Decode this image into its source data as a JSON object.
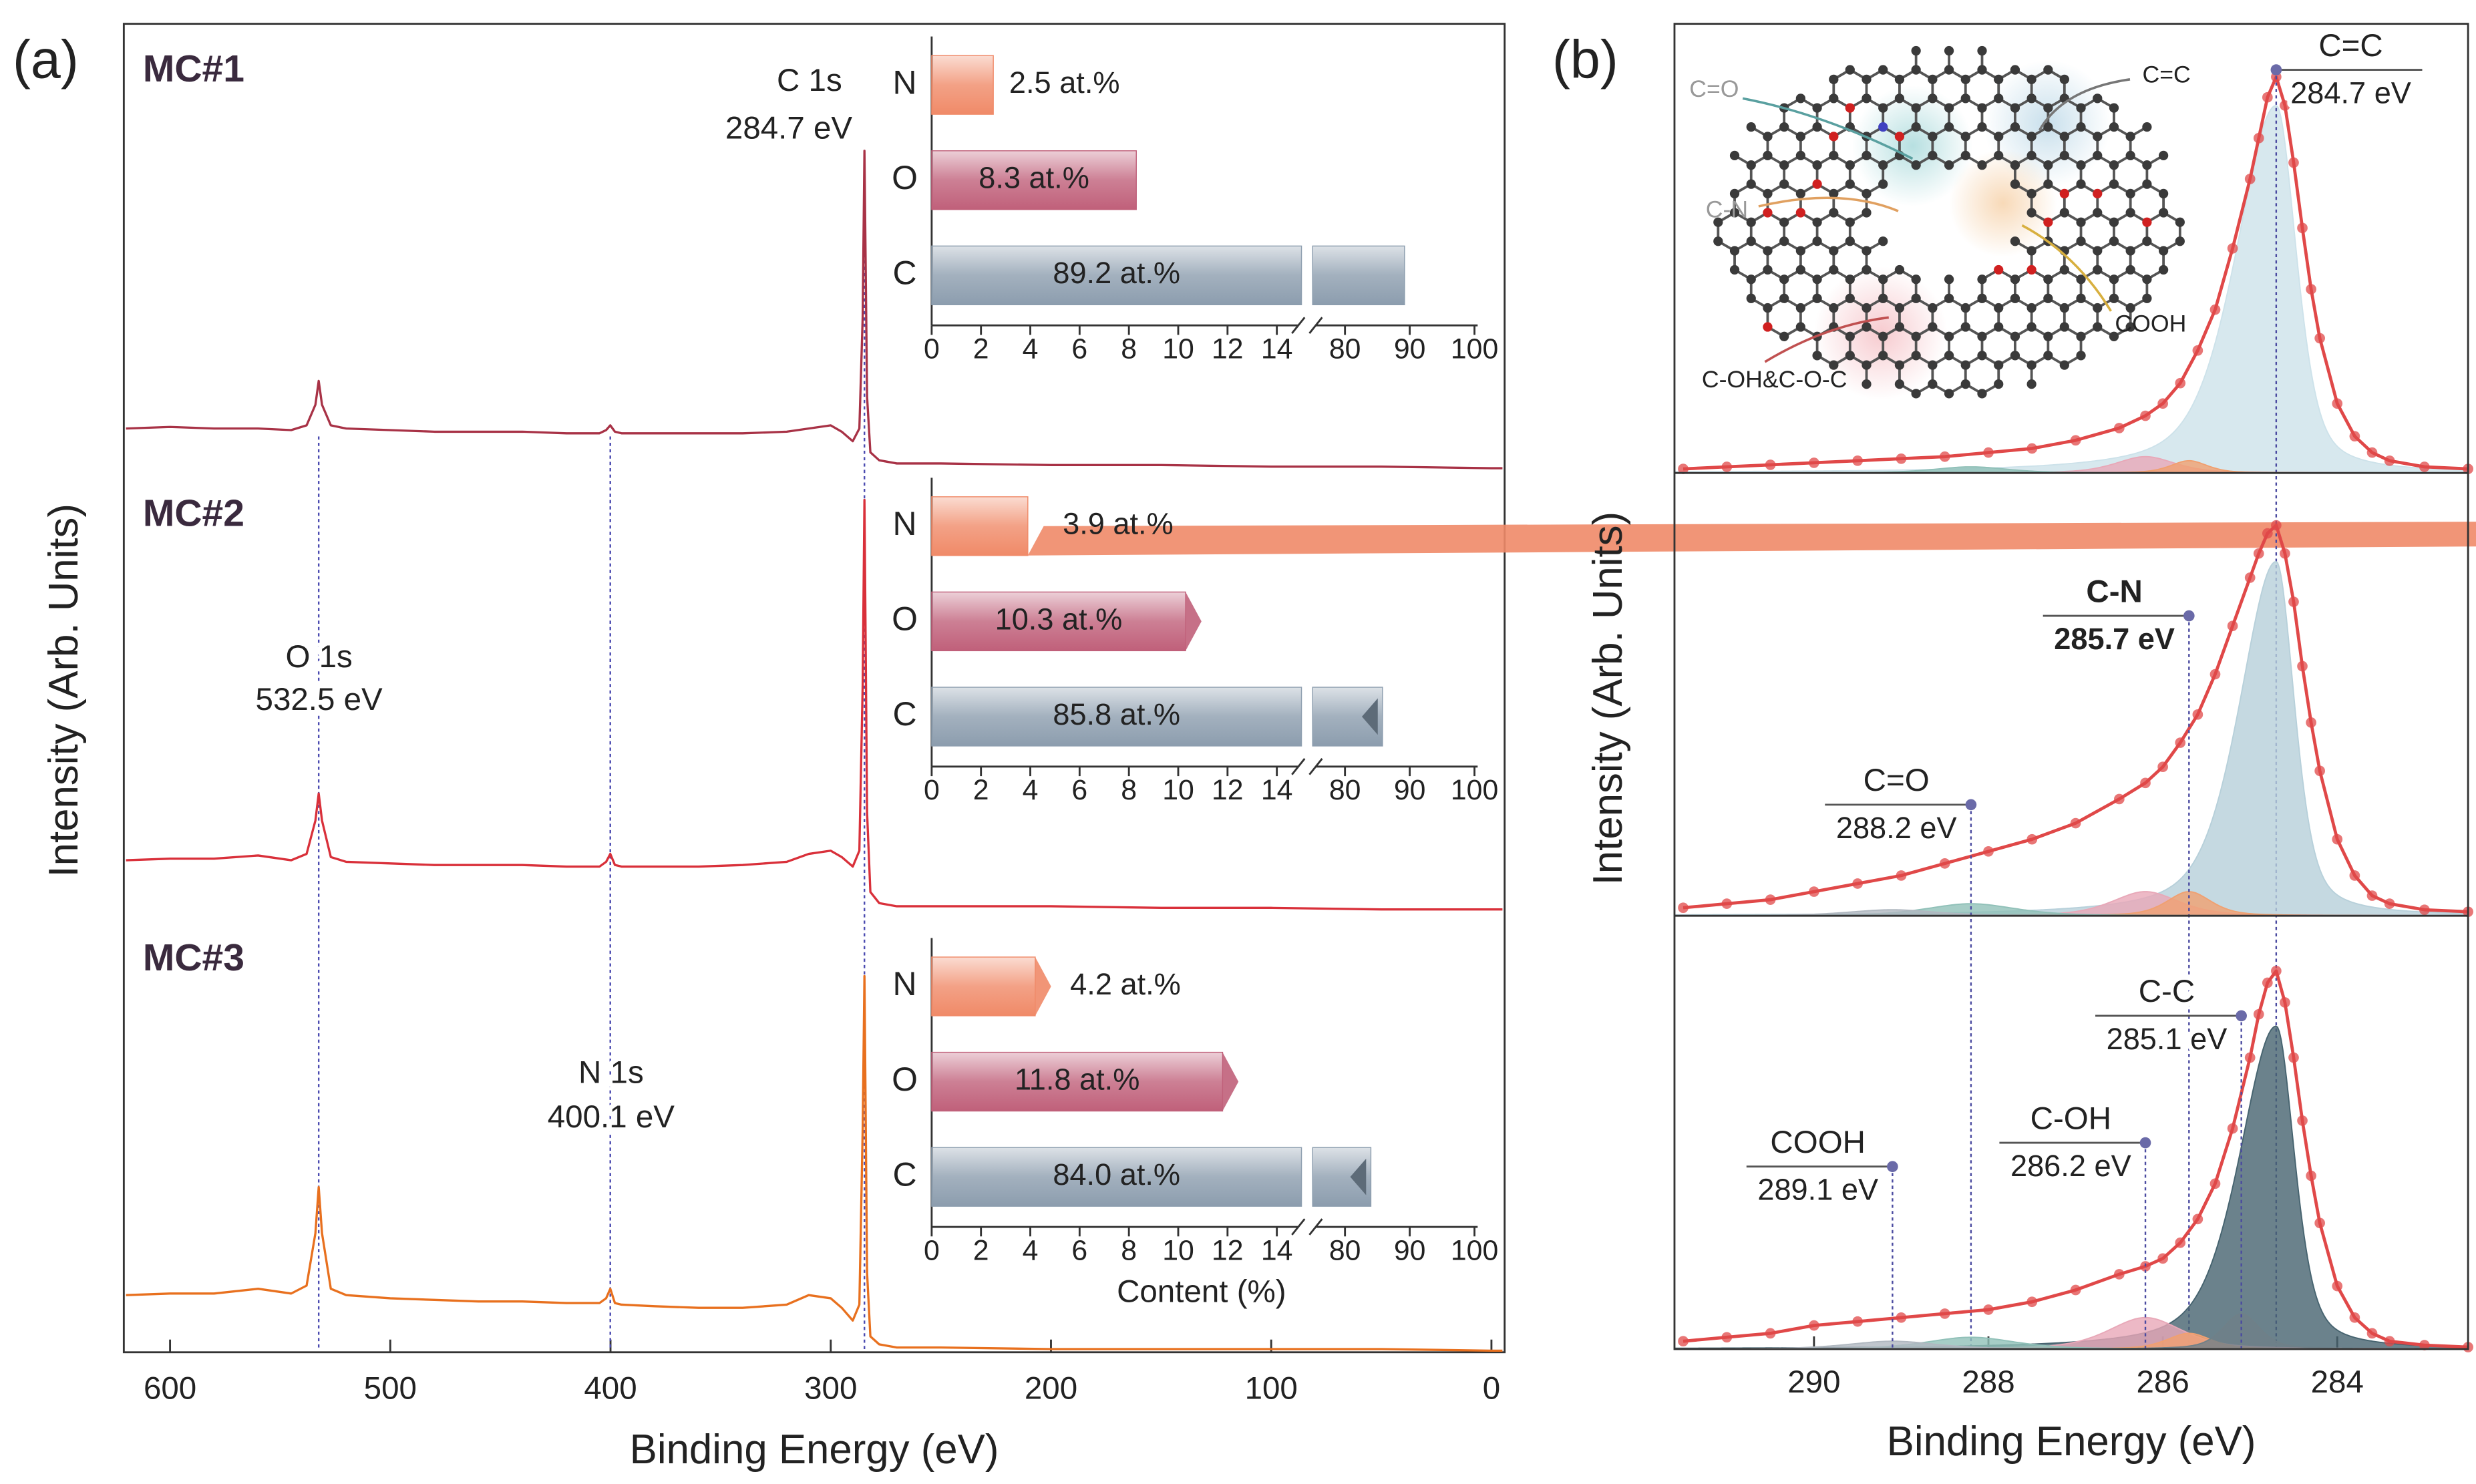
{
  "chart_data": [
    {
      "type": "line",
      "label": "(a)",
      "xlabel": "Binding Energy (eV)",
      "ylabel": "Intensity (Arb. Units)",
      "xlim": [
        621,
        -6
      ],
      "xticks": [
        600,
        500,
        400,
        300,
        200,
        100,
        0
      ],
      "ylim": [
        0,
        837
      ],
      "x": [
        620,
        600,
        580,
        560,
        545,
        538,
        534,
        532.5,
        531,
        527,
        520,
        500,
        480,
        460,
        440,
        420,
        405,
        402,
        400.1,
        398,
        395,
        380,
        360,
        340,
        320,
        310,
        300,
        295,
        290,
        287,
        285.5,
        284.7,
        283.5,
        282,
        278,
        270,
        250,
        200,
        150,
        100,
        50,
        0,
        -5
      ],
      "series": [
        {
          "name": "MC#1",
          "color": "#a83246",
          "values": [
            582,
            583,
            582,
            582,
            581,
            584,
            597,
            612,
            597,
            584,
            582,
            581,
            580,
            580,
            580,
            579,
            579,
            581,
            584,
            580,
            579,
            579,
            579,
            579,
            580,
            582,
            584,
            580,
            574,
            582,
            652,
            757,
            602,
            567,
            562,
            560,
            560,
            559,
            559,
            558,
            558,
            557,
            557
          ]
        },
        {
          "name": "MC#2",
          "color": "#d9303a",
          "values": [
            310,
            311,
            311,
            313,
            310,
            314,
            335,
            352,
            335,
            312,
            309,
            308,
            307,
            307,
            307,
            306,
            306,
            309,
            314,
            307,
            306,
            306,
            306,
            307,
            309,
            314,
            316,
            312,
            306,
            316,
            420,
            537,
            340,
            290,
            283,
            281,
            281,
            281,
            280,
            280,
            279,
            279,
            279
          ]
        },
        {
          "name": "MC#3",
          "color": "#e8701e",
          "values": [
            36,
            37,
            37,
            40,
            37,
            42,
            75,
            104,
            75,
            40,
            36,
            34,
            33,
            32,
            32,
            31,
            31,
            34,
            40,
            31,
            30,
            29,
            28,
            28,
            30,
            36,
            34,
            28,
            20,
            30,
            140,
            237,
            50,
            10,
            5,
            3,
            3,
            2,
            2,
            2,
            2,
            1,
            1
          ]
        }
      ],
      "peaks": [
        {
          "name": "C 1s",
          "energy": 284.7,
          "energy_label": "284.7 eV"
        },
        {
          "name": "O 1s",
          "energy": 532.5,
          "energy_label": "532.5 eV"
        },
        {
          "name": "N 1s",
          "energy": 400.1,
          "energy_label": "400.1 eV"
        }
      ]
    },
    {
      "type": "hbar",
      "categories": [
        "N",
        "O",
        "C"
      ],
      "values": [
        2.5,
        8.3,
        89.2
      ],
      "value_labels": [
        "2.5 at.%",
        "8.3 at.%",
        "89.2 at.%"
      ],
      "colors": [
        "#f08a68",
        "#c0607a",
        "#8c9dae"
      ],
      "xlim": [
        0,
        100
      ],
      "xbreak": [
        15,
        75
      ],
      "xticks": [
        0,
        2,
        4,
        6,
        8,
        10,
        12,
        14,
        80,
        90,
        100
      ]
    },
    {
      "type": "hbar",
      "categories": [
        "N",
        "O",
        "C"
      ],
      "values": [
        3.9,
        10.3,
        85.8
      ],
      "value_labels": [
        "3.9 at.%",
        "10.3 at.%",
        "85.8 at.%"
      ],
      "colors": [
        "#f08a68",
        "#c0607a",
        "#8c9dae"
      ],
      "xlim": [
        0,
        100
      ],
      "xbreak": [
        15,
        75
      ],
      "xticks": [
        0,
        2,
        4,
        6,
        8,
        10,
        12,
        14,
        80,
        90,
        100
      ]
    },
    {
      "type": "hbar",
      "categories": [
        "N",
        "O",
        "C"
      ],
      "values": [
        4.2,
        11.8,
        84.0
      ],
      "value_labels": [
        "4.2 at.%",
        "11.8 at.%",
        "84.0 at.%"
      ],
      "colors": [
        "#f08a68",
        "#c0607a",
        "#8c9dae"
      ],
      "xlim": [
        0,
        100
      ],
      "xbreak": [
        15,
        75
      ],
      "xticks": [
        0,
        2,
        4,
        6,
        8,
        10,
        12,
        14,
        80,
        90,
        100
      ],
      "xlabel": "Content (%)"
    },
    {
      "type": "peakfit",
      "label": "(b)",
      "xlabel": "Binding Energy (eV)",
      "ylabel": "Intensity (Arb. Units)",
      "xlim": [
        291.6,
        282.5
      ],
      "xticks": [
        290,
        288,
        286,
        284
      ],
      "ylim": [
        0,
        1.1
      ],
      "data_color": "#e04848",
      "x": [
        291.5,
        291,
        290.5,
        290,
        289.5,
        289,
        288.5,
        288,
        287.5,
        287,
        286.5,
        286.2,
        286,
        285.8,
        285.6,
        285.4,
        285.2,
        285,
        284.9,
        284.8,
        284.7,
        284.6,
        284.5,
        284.4,
        284.3,
        284.2,
        284,
        283.8,
        283.6,
        283.4,
        283,
        282.5
      ],
      "panels": [
        {
          "values": [
            0.01,
            0.015,
            0.02,
            0.025,
            0.03,
            0.035,
            0.04,
            0.05,
            0.06,
            0.08,
            0.11,
            0.14,
            0.17,
            0.22,
            0.3,
            0.4,
            0.55,
            0.72,
            0.82,
            0.92,
            0.97,
            0.9,
            0.76,
            0.6,
            0.45,
            0.33,
            0.17,
            0.09,
            0.05,
            0.03,
            0.015,
            0.01
          ],
          "components": [
            {
              "center": 284.7,
              "height": 0.9,
              "fwhm": [
                0.55,
                1.1
              ],
              "color": "#cde2ea"
            },
            {
              "center": 286.2,
              "height": 0.04,
              "fwhm": [
                0.8,
                0.8
              ],
              "color": "#e8a8b8"
            },
            {
              "center": 285.7,
              "height": 0.03,
              "fwhm": [
                0.5,
                0.5
              ],
              "color": "#f0a070"
            },
            {
              "center": 288.2,
              "height": 0.015,
              "fwhm": [
                1,
                1
              ],
              "color": "#90c0b8"
            }
          ],
          "annotations": [
            {
              "text": "C=C",
              "energy": 284.7,
              "energy_label": "284.7 eV",
              "bold": false
            }
          ]
        },
        {
          "values": [
            0.02,
            0.03,
            0.04,
            0.06,
            0.08,
            0.1,
            0.13,
            0.16,
            0.19,
            0.23,
            0.29,
            0.33,
            0.37,
            0.43,
            0.5,
            0.6,
            0.72,
            0.84,
            0.9,
            0.95,
            0.97,
            0.9,
            0.78,
            0.62,
            0.48,
            0.36,
            0.19,
            0.1,
            0.05,
            0.03,
            0.015,
            0.01
          ],
          "components": [
            {
              "center": 284.7,
              "height": 0.88,
              "fwhm": [
                0.5,
                1.0
              ],
              "color": "#b7d0da"
            },
            {
              "center": 286.2,
              "height": 0.06,
              "fwhm": [
                0.9,
                0.9
              ],
              "color": "#e8a8b8"
            },
            {
              "center": 285.7,
              "height": 0.06,
              "fwhm": [
                0.6,
                0.6
              ],
              "color": "#f0a070"
            },
            {
              "center": 288.2,
              "height": 0.03,
              "fwhm": [
                1.2,
                1.2
              ],
              "color": "#90c0b8"
            },
            {
              "center": 289.1,
              "height": 0.015,
              "fwhm": [
                1.2,
                1.2
              ],
              "color": "#b0b8c0"
            }
          ],
          "annotations": [
            {
              "text": "C-N",
              "energy": 285.7,
              "energy_label": "285.7 eV",
              "bold": true
            },
            {
              "text": "C=O",
              "energy": 288.2,
              "energy_label": "288.2 eV",
              "bold": false
            }
          ]
        },
        {
          "values": [
            0.02,
            0.03,
            0.04,
            0.06,
            0.07,
            0.08,
            0.09,
            0.1,
            0.12,
            0.15,
            0.19,
            0.21,
            0.23,
            0.27,
            0.33,
            0.42,
            0.56,
            0.74,
            0.85,
            0.93,
            0.96,
            0.88,
            0.74,
            0.58,
            0.44,
            0.32,
            0.16,
            0.08,
            0.04,
            0.02,
            0.01,
            0.005
          ],
          "components": [
            {
              "center": 284.7,
              "height": 0.82,
              "fwhm": [
                0.5,
                1.0
              ],
              "color": "#46636f"
            },
            {
              "center": 286.2,
              "height": 0.08,
              "fwhm": [
                1,
                1
              ],
              "color": "#e8a8b8"
            },
            {
              "center": 285.7,
              "height": 0.04,
              "fwhm": [
                0.6,
                0.6
              ],
              "color": "#f0a070"
            },
            {
              "center": 285.1,
              "height": 0.09,
              "fwhm": [
                0.5,
                0.5
              ],
              "color": "#6f8088"
            },
            {
              "center": 288.2,
              "height": 0.03,
              "fwhm": [
                1.2,
                1.2
              ],
              "color": "#90c0b8"
            },
            {
              "center": 289.1,
              "height": 0.02,
              "fwhm": [
                1.2,
                1.2
              ],
              "color": "#b0b8c0"
            }
          ],
          "annotations": [
            {
              "text": "C-C",
              "energy": 285.1,
              "energy_label": "285.1 eV",
              "bold": false
            },
            {
              "text": "C-OH",
              "energy": 286.2,
              "energy_label": "286.2 eV",
              "bold": false
            },
            {
              "text": "COOH",
              "energy": 289.1,
              "energy_label": "289.1 eV",
              "bold": false
            }
          ]
        }
      ],
      "molecule_labels": [
        "C=O",
        "C=C",
        "C-N",
        "COOH",
        "C-OH&C-O-C"
      ]
    }
  ]
}
